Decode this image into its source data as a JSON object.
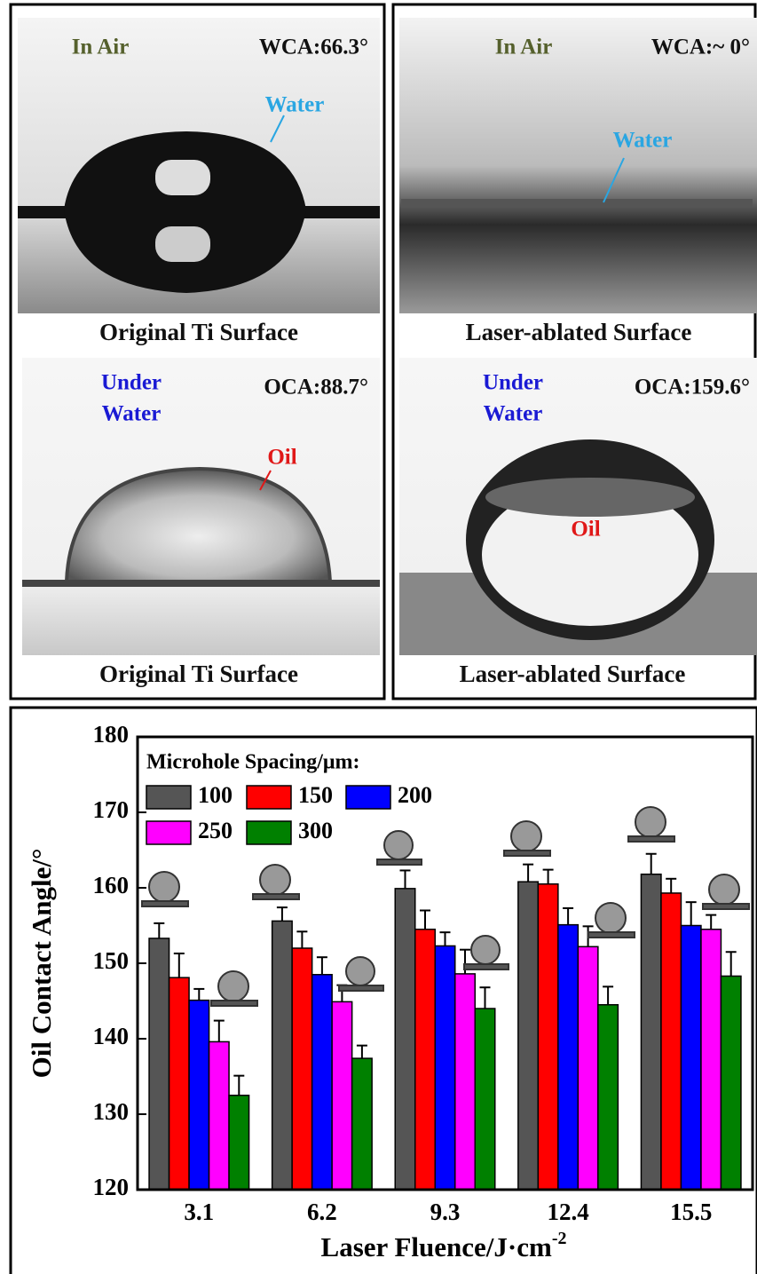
{
  "panels": [
    {
      "env": "In Air",
      "angle": "WCA:66.3°",
      "drop": "Water",
      "caption": "Original Ti Surface"
    },
    {
      "env": "In Air",
      "angle": "WCA:~ 0°",
      "drop": "Water",
      "caption": "Laser-ablated Surface"
    },
    {
      "env": [
        "Under",
        "Water"
      ],
      "angle": "OCA:88.7°",
      "drop": "Oil",
      "caption": "Original Ti Surface"
    },
    {
      "env": [
        "Under",
        "Water"
      ],
      "angle": "OCA:159.6°",
      "drop": "Oil",
      "caption": "Laser-ablated Surface"
    }
  ],
  "chart_data": {
    "type": "bar",
    "xlabel": "Laser Fluence/J·cm",
    "xlabel_superscript": "-2",
    "ylabel": "Oil Contact Angle/°",
    "legend_title": "Microhole Spacing/μm:",
    "categories": [
      "3.1",
      "6.2",
      "9.3",
      "12.4",
      "15.5"
    ],
    "series": [
      {
        "name": "100",
        "color": "#555555",
        "values": [
          153.3,
          155.6,
          159.9,
          160.8,
          161.8
        ],
        "errors": [
          2.0,
          1.8,
          2.4,
          2.3,
          2.7
        ]
      },
      {
        "name": "150",
        "color": "#ff0000",
        "values": [
          148.1,
          152.0,
          154.5,
          160.5,
          159.3
        ],
        "errors": [
          3.2,
          2.2,
          2.5,
          1.9,
          1.9
        ]
      },
      {
        "name": "200",
        "color": "#0000ff",
        "values": [
          145.1,
          148.5,
          152.3,
          155.1,
          155.0
        ],
        "errors": [
          1.5,
          2.3,
          1.8,
          2.2,
          3.1
        ]
      },
      {
        "name": "250",
        "color": "#ff00ff",
        "values": [
          139.6,
          144.9,
          148.6,
          152.2,
          154.5
        ],
        "errors": [
          2.8,
          2.2,
          3.2,
          2.7,
          1.9
        ]
      },
      {
        "name": "300",
        "color": "#008000",
        "values": [
          132.5,
          137.4,
          144.0,
          144.5,
          148.3
        ],
        "errors": [
          2.6,
          1.7,
          2.8,
          2.4,
          3.2
        ]
      }
    ],
    "ylim": [
      120,
      180
    ],
    "yticks": [
      120,
      130,
      140,
      150,
      160,
      170,
      180
    ],
    "legend": "upper left"
  }
}
